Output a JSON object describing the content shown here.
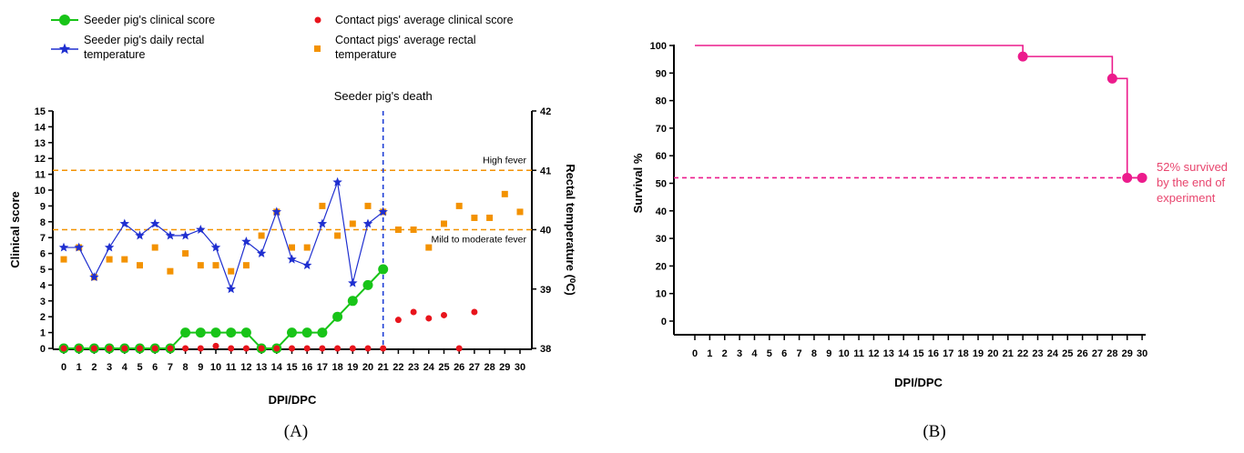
{
  "panel_labels": {
    "a": "(A)",
    "b": "(B)"
  },
  "legend": {
    "seeder_score": "Seeder pig's clinical score",
    "contact_score": "Contact pigs' average clinical score",
    "seeder_temp_line1": "Seeder pig's daily rectal",
    "seeder_temp_line2": "temperature",
    "contact_temp_line1": "Contact pigs' average rectal",
    "contact_temp_line2": "temperature"
  },
  "chart_data": [
    {
      "type": "line",
      "panel": "A",
      "xlabel": "DPI/DPC",
      "ylabel": "Clinical score",
      "y2label": "Rectal temperature (⁰C)",
      "xlim": [
        0,
        30
      ],
      "ylim": [
        0,
        15
      ],
      "y2lim": [
        38,
        42
      ],
      "x_ticks": [
        0,
        1,
        2,
        3,
        4,
        5,
        6,
        7,
        8,
        9,
        10,
        11,
        12,
        13,
        14,
        15,
        16,
        17,
        18,
        19,
        20,
        21,
        22,
        23,
        24,
        25,
        26,
        27,
        28,
        29,
        30
      ],
      "y_ticks": [
        0,
        1,
        2,
        3,
        4,
        5,
        6,
        7,
        8,
        9,
        10,
        11,
        12,
        13,
        14,
        15
      ],
      "y2_ticks": [
        38,
        39,
        40,
        41,
        42
      ],
      "reference_lines": [
        {
          "axis": "y2",
          "value": 41.0,
          "label": "High fever",
          "color": "#f39200"
        },
        {
          "axis": "y2",
          "value": 40.0,
          "label": "Mild to moderate fever",
          "color": "#f39200"
        }
      ],
      "event_line": {
        "axis": "x",
        "value": 21,
        "label": "Seeder pig's death",
        "color": "#1f3fd6"
      },
      "series": [
        {
          "name": "Seeder pig's clinical score",
          "axis": "y",
          "style": "line+circle",
          "color": "#18c418",
          "x": [
            0,
            1,
            2,
            3,
            4,
            5,
            6,
            7,
            8,
            9,
            10,
            11,
            12,
            13,
            14,
            15,
            16,
            17,
            18,
            19,
            20,
            21
          ],
          "y": [
            0,
            0,
            0,
            0,
            0,
            0,
            0,
            0,
            1,
            1,
            1,
            1,
            1,
            0,
            0,
            1,
            1,
            1,
            2,
            3,
            4,
            5
          ]
        },
        {
          "name": "Seeder pig's daily rectal temperature",
          "axis": "y2",
          "style": "line+star",
          "color": "#1f2fd0",
          "x": [
            0,
            1,
            2,
            3,
            4,
            5,
            6,
            7,
            8,
            9,
            10,
            11,
            12,
            13,
            14,
            15,
            16,
            17,
            18,
            19,
            20,
            21
          ],
          "y": [
            39.7,
            39.7,
            39.2,
            39.7,
            40.1,
            39.9,
            40.1,
            39.9,
            39.9,
            40.0,
            39.7,
            39.0,
            39.8,
            39.6,
            40.3,
            39.5,
            39.4,
            40.1,
            40.8,
            39.1,
            40.1,
            40.3
          ]
        },
        {
          "name": "Contact pigs' average clinical score",
          "axis": "y",
          "style": "circle",
          "color": "#e8141c",
          "x": [
            0,
            1,
            2,
            3,
            4,
            5,
            6,
            7,
            8,
            9,
            10,
            11,
            12,
            13,
            14,
            15,
            16,
            17,
            18,
            19,
            20,
            21,
            22,
            23,
            24,
            25,
            26,
            27
          ],
          "y": [
            0,
            0,
            0,
            0,
            0,
            0,
            0,
            0,
            0,
            0,
            0.15,
            0,
            0,
            0,
            0,
            0,
            0,
            0,
            0,
            0,
            0,
            0,
            1.8,
            2.3,
            1.9,
            2.1,
            0,
            2.3
          ]
        },
        {
          "name": "Contact pigs' average rectal temperature",
          "axis": "y2",
          "style": "square",
          "color": "#f39200",
          "x": [
            0,
            1,
            2,
            3,
            4,
            5,
            6,
            7,
            8,
            9,
            10,
            11,
            12,
            13,
            14,
            15,
            16,
            17,
            18,
            19,
            20,
            21,
            22,
            23,
            24,
            25,
            26,
            27,
            28,
            29,
            30
          ],
          "y": [
            39.5,
            39.7,
            39.2,
            39.5,
            39.5,
            39.4,
            39.7,
            39.3,
            39.6,
            39.4,
            39.4,
            39.3,
            39.4,
            39.9,
            40.3,
            39.7,
            39.7,
            40.4,
            39.9,
            40.1,
            40.4,
            40.3,
            40.0,
            40.0,
            39.7,
            40.1,
            40.4,
            40.2,
            40.2,
            40.6,
            40.3
          ]
        }
      ]
    },
    {
      "type": "line",
      "panel": "B",
      "xlabel": "DPI/DPC",
      "ylabel": "Survival %",
      "xlim": [
        0,
        30
      ],
      "ylim": [
        0,
        100
      ],
      "x_ticks": [
        0,
        1,
        2,
        3,
        4,
        5,
        6,
        7,
        8,
        9,
        10,
        11,
        12,
        13,
        14,
        15,
        16,
        17,
        18,
        19,
        20,
        21,
        22,
        23,
        24,
        25,
        26,
        27,
        28,
        29,
        30
      ],
      "y_ticks": [
        0,
        10,
        20,
        30,
        40,
        50,
        60,
        70,
        80,
        90,
        100
      ],
      "series": [
        {
          "style": "step",
          "color": "#ec1b8c",
          "x": [
            0,
            22,
            28,
            29,
            30
          ],
          "y": [
            100,
            96,
            88,
            52,
            52
          ],
          "marked_points": [
            [
              22,
              96
            ],
            [
              28,
              88
            ],
            [
              29,
              52
            ],
            [
              30,
              52
            ]
          ]
        }
      ],
      "reference_lines": [
        {
          "axis": "y",
          "value": 52,
          "style": "dashed",
          "color": "#ec1b8c"
        }
      ],
      "annotation": {
        "lines": [
          "52% survived",
          "by the end of",
          "experiment"
        ],
        "color": "#e8456e"
      }
    }
  ]
}
